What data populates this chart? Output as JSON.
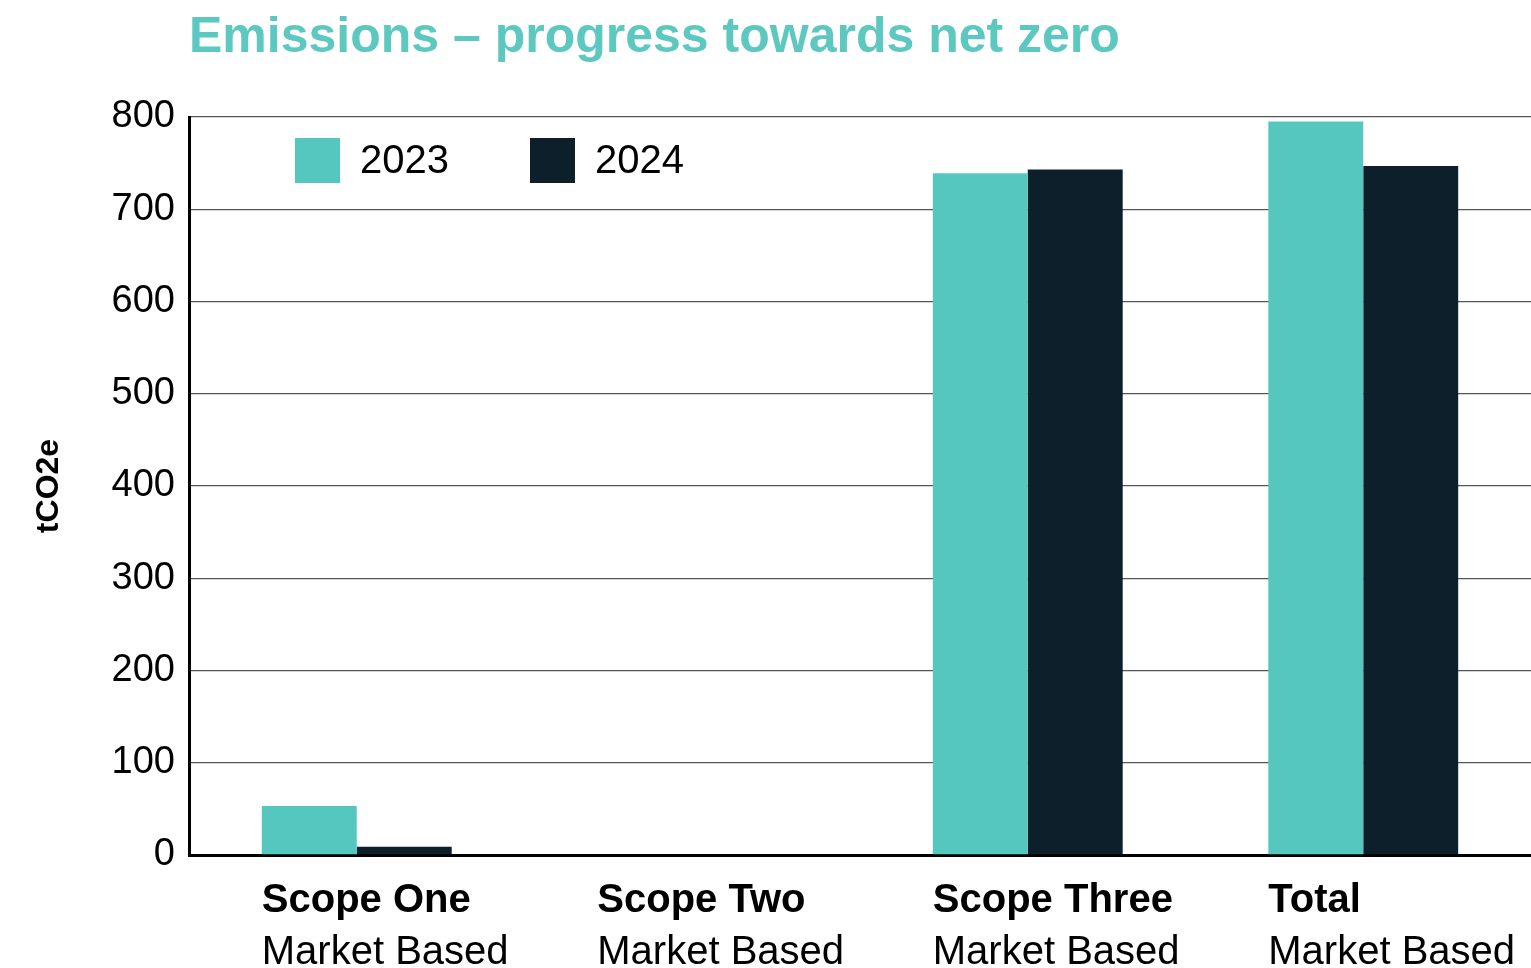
{
  "chart_data": {
    "type": "bar",
    "title": "Emissions – progress towards net zero",
    "ylabel": "tCO2e",
    "categories": [
      "Scope One\nMarket Based",
      "Scope Two\nMarket Based",
      "Scope Three\nMarket Based",
      "Total\nMarket Based"
    ],
    "series": [
      {
        "name": "2023",
        "color": "#56c7bf",
        "values": [
          53,
          null,
          739,
          795
        ]
      },
      {
        "name": "2024",
        "color": "#0e1f2c",
        "values": [
          9,
          null,
          743,
          747
        ]
      }
    ],
    "ylim": [
      0,
      800
    ],
    "yticks": [
      0,
      100,
      200,
      300,
      400,
      500,
      600,
      700,
      800
    ],
    "grid": "y",
    "legend": "top left"
  }
}
